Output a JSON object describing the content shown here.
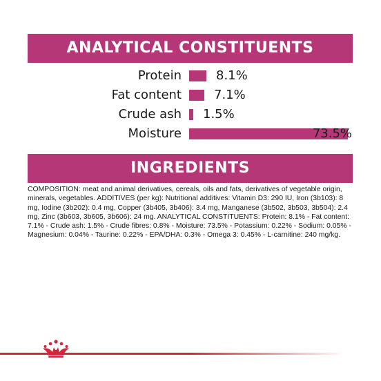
{
  "analytical": {
    "title": "ANALYTICAL CONSTITUENTS",
    "rows": [
      {
        "label": "Protein",
        "value": "8.1%",
        "fraction": 0.081
      },
      {
        "label": "Fat content",
        "value": "7.1%",
        "fraction": 0.071
      },
      {
        "label": "Crude ash",
        "value": "1.5%",
        "fraction": 0.015
      },
      {
        "label": "Moisture",
        "value": "73.5%",
        "fraction": 0.735
      }
    ]
  },
  "ingredients": {
    "title": "INGREDIENTS",
    "composition": "COMPOSITION: meat and animal derivatives, cereals, oils and fats, derivatives of vegetable origin, minerals, vegetables. ADDITIVES (per kg): Nutritional additives: Vitamin D3: 290 IU, Iron (3b103): 8 mg, Iodine (3b202): 0.4 mg, Copper (3b405, 3b406): 3.4 mg, Manganese (3b502, 3b503, 3b504): 2.4 mg, Zinc (3b603, 3b605, 3b606): 24 mg. ANALYTICAL CONSTITUENTS: Protein: 8.1% - Fat content: 7.1% - Crude ash: 1.5% - Crude fibres: 0.8% - Moisture: 73.5% - Potassium: 0.22% - Sodium: 0.05% - Magnesium: 0.04% - Taurine: 0.22% - EPA/DHA: 0.3% - Omega 3: 0.45% - L-carnitine: 240 mg/kg."
  },
  "colors": {
    "banner": "#b53778",
    "bar": "#b53778",
    "footer_line": "#d3263b",
    "logo": "#d3263b"
  },
  "footer": {
    "logo_icon": "crown-icon"
  }
}
